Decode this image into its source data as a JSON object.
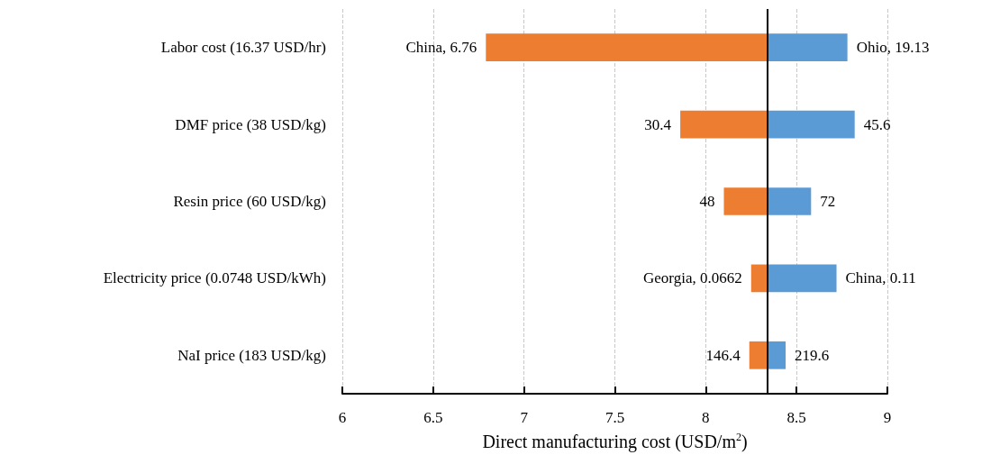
{
  "chart_data": {
    "type": "bar",
    "orientation": "horizontal",
    "xlabel": "Direct manufacturing cost (USD/m$^{2}$)",
    "categories": [
      "Labor cost (16.37 USD/hr)",
      "DMF price (38 USD/kg)",
      "Resin price (60 USD/kg)",
      "Electricity price (0.0748 USD/kWh)",
      "NaI price (183 USD/kg)"
    ],
    "series": [
      {
        "color": "#ed7d31",
        "base": [
          6.79,
          7.86,
          8.1,
          8.25,
          8.24
        ],
        "values": [
          1.55,
          0.48,
          0.24,
          0.09,
          0.1
        ]
      },
      {
        "color": "#5b9bd5",
        "base": [
          8.34,
          8.34,
          8.34,
          8.34,
          8.34
        ],
        "values": [
          0.44,
          0.48,
          0.24,
          0.38,
          0.1
        ]
      }
    ],
    "annotations": [
      {
        "text": "China, 6.76",
        "x": 6.79,
        "y": "Labor cost (16.37 USD/hr)"
      },
      {
        "text": "Ohio, 19.13",
        "x": 8.78,
        "y": "Labor cost (16.37 USD/hr)"
      },
      {
        "text": "30.4",
        "x": 7.86,
        "y": "DMF price (38 USD/kg)"
      },
      {
        "text": "45.6",
        "x": 8.82,
        "y": "DMF price (38 USD/kg)"
      },
      {
        "text": "48",
        "x": 8.1,
        "y": "Resin price (60 USD/kg)"
      },
      {
        "text": "72",
        "x": 8.58,
        "y": "Resin price (60 USD/kg)"
      },
      {
        "text": "Georgia, 0.0662",
        "x": 8.25,
        "y": "Electricity price (0.0748 USD/kWh)"
      },
      {
        "text": "China, 0.11",
        "x": 8.72,
        "y": "Electricity price (0.0748 USD/kWh)"
      },
      {
        "text": "146.4",
        "x": 8.24,
        "y": "NaI price (183 USD/kg)"
      },
      {
        "text": "219.6",
        "x": 8.44,
        "y": "NaI price (183 USD/kg)"
      }
    ],
    "xlim": [
      6,
      9
    ],
    "xticks": [
      6,
      6.5,
      7,
      7.5,
      8,
      8.5,
      9
    ],
    "grid": "x",
    "ref_lines": [
      {
        "axis": "x",
        "value": 8.34,
        "color": "#000000"
      }
    ]
  }
}
